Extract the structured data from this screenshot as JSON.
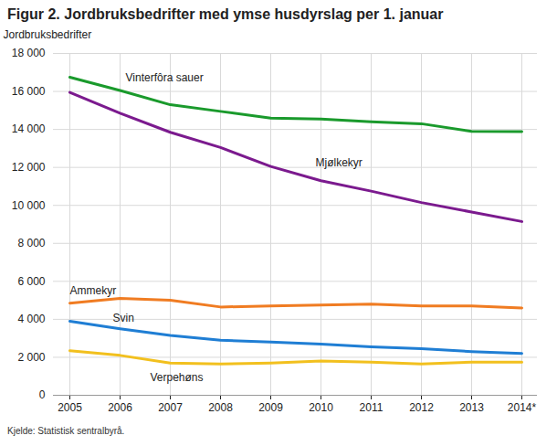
{
  "chart_data": {
    "type": "line",
    "title": "Figur 2. Jordbruksbedrifter med ymse husdyrslag per 1. januar",
    "y_label": "Jordbruksbedrifter",
    "source": "Kjelde: Statistisk sentralbyrå.",
    "categories": [
      "2005",
      "2006",
      "2007",
      "2008",
      "2009",
      "2010",
      "2011",
      "2012",
      "2013",
      "2014*"
    ],
    "series": [
      {
        "name": "Vinterfôra sauer",
        "color": "#1a9a2c",
        "values": [
          16750,
          16050,
          15300,
          14950,
          14600,
          14550,
          14400,
          14300,
          13900,
          13880
        ]
      },
      {
        "name": "Mjølkekyr",
        "color": "#7b1a8e",
        "values": [
          15950,
          14850,
          13850,
          13050,
          12050,
          11300,
          10750,
          10150,
          9650,
          9150
        ]
      },
      {
        "name": "Ammekyr",
        "color": "#f07c22",
        "values": [
          4850,
          5100,
          5000,
          4650,
          4700,
          4750,
          4800,
          4700,
          4700,
          4600
        ]
      },
      {
        "name": "Svin",
        "color": "#1f7ed4",
        "values": [
          3900,
          3500,
          3150,
          2900,
          2800,
          2700,
          2550,
          2450,
          2300,
          2200
        ]
      },
      {
        "name": "Verpehøns",
        "color": "#f2c01e",
        "values": [
          2350,
          2100,
          1700,
          1650,
          1700,
          1800,
          1750,
          1650,
          1750,
          1750
        ]
      }
    ],
    "ylim": [
      0,
      18000
    ],
    "yticks": [
      0,
      {
        "value": 2000,
        "label": "2 000"
      },
      {
        "value": 4000,
        "label": "4 000"
      },
      {
        "value": 6000,
        "label": "6 000"
      },
      {
        "value": 8000,
        "label": "8 000"
      },
      {
        "value": 10000,
        "label": "10 000"
      },
      {
        "value": 12000,
        "label": "12 000"
      },
      {
        "value": 14000,
        "label": "14 000"
      },
      {
        "value": 16000,
        "label": "16 000"
      },
      {
        "value": 18000,
        "label": "18 000"
      }
    ],
    "grid": true
  }
}
